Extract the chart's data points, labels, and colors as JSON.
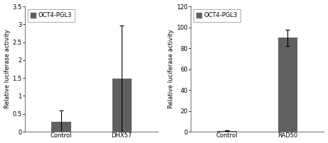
{
  "left": {
    "categories": [
      "Control",
      "DHX57"
    ],
    "values": [
      0.28,
      1.48
    ],
    "errors": [
      0.32,
      1.48
    ],
    "ylim": [
      0,
      3.5
    ],
    "yticks": [
      0,
      0.5,
      1.0,
      1.5,
      2.0,
      2.5,
      3.0,
      3.5
    ],
    "ylabel": "Relative luciferase activity",
    "legend_label": "OCT4-PGL3",
    "bar_color": "#606060"
  },
  "right": {
    "categories": [
      "Control",
      "RAD50"
    ],
    "values": [
      0.8,
      90.0
    ],
    "errors": [
      0.3,
      8.0
    ],
    "ylim": [
      0,
      120
    ],
    "yticks": [
      0,
      20,
      40,
      60,
      80,
      100,
      120
    ],
    "ylabel": "Relative luciferase activity",
    "legend_label": "OCT4-PGL3",
    "bar_color": "#606060"
  },
  "bar_width": 0.32,
  "fig_width": 4.61,
  "fig_height": 2.02,
  "dpi": 100,
  "tick_font_size": 6.0,
  "ylabel_font_size": 6.0,
  "legend_font_size": 6.0,
  "background_color": "#f0f0f0"
}
